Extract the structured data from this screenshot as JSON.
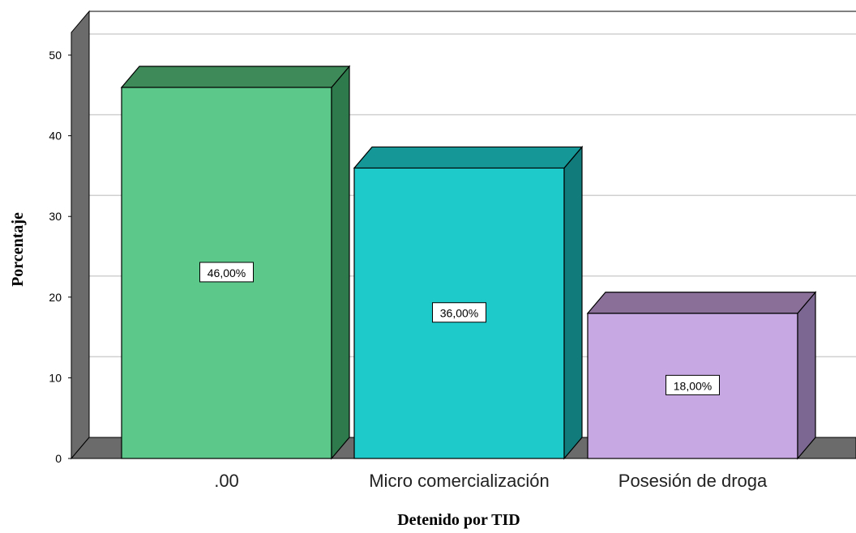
{
  "chart_data": {
    "type": "bar",
    "categories": [
      ".00",
      "Micro comercialización",
      "Posesión de droga"
    ],
    "values": [
      46,
      36,
      18
    ],
    "data_labels": [
      "46,00%",
      "36,00%",
      "18,00%"
    ],
    "xlabel": "Detenido por TID",
    "ylabel": "Porcentaje",
    "ylim": [
      0,
      50
    ],
    "yticks": [
      0,
      10,
      20,
      30,
      40,
      50
    ],
    "grid": true,
    "style": "3d",
    "colors": [
      "#5cc88a",
      "#1fcaca",
      "#c7a8e3"
    ],
    "side_colors": [
      "#2f7a4c",
      "#117b7b",
      "#7b6792"
    ],
    "top_colors": [
      "#3e8a58",
      "#159797",
      "#8a6f99"
    ]
  }
}
